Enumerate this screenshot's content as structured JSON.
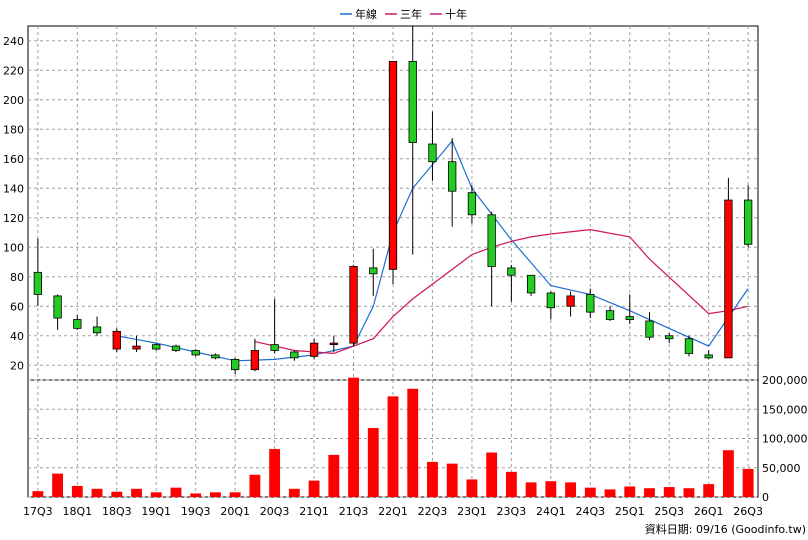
{
  "chart_data": {
    "type": "candlestick",
    "legend": {
      "placement": "top-center",
      "entries": [
        {
          "label": "年線",
          "color": "#1f6fd1"
        },
        {
          "label": "三年",
          "color": "#d1145a"
        },
        {
          "label": "十年",
          "color": "#c21f8a"
        }
      ]
    },
    "price_axis": {
      "ylim": [
        10,
        250
      ],
      "ticks": [
        20,
        40,
        60,
        80,
        100,
        120,
        140,
        160,
        180,
        200,
        220,
        240
      ]
    },
    "volume_axis": {
      "ylim": [
        0,
        200000
      ],
      "ticks": [
        0,
        50000,
        100000,
        150000,
        200000
      ],
      "tick_labels": [
        "0",
        "50,000",
        "100,000",
        "150,000",
        "200,000"
      ]
    },
    "x_labels": [
      "17Q3",
      "18Q1",
      "18Q3",
      "19Q1",
      "19Q3",
      "20Q1",
      "20Q3",
      "21Q1",
      "21Q3",
      "22Q1",
      "22Q3",
      "23Q1",
      "23Q3",
      "24Q1",
      "24Q3",
      "25Q1",
      "25Q3",
      "26Q1",
      "26Q3"
    ],
    "candles": [
      {
        "o": 68,
        "h": 106,
        "l": 60,
        "c": 83
      },
      {
        "o": 52,
        "h": 68,
        "l": 44,
        "c": 67
      },
      {
        "o": 45,
        "h": 54,
        "l": 44,
        "c": 51
      },
      {
        "o": 42,
        "h": 53,
        "l": 40,
        "c": 46
      },
      {
        "o": 43,
        "h": 45,
        "l": 29,
        "c": 31
      },
      {
        "o": 33,
        "h": 40,
        "l": 29,
        "c": 31
      },
      {
        "o": 31,
        "h": 35,
        "l": 30,
        "c": 34
      },
      {
        "o": 30,
        "h": 34,
        "l": 29,
        "c": 33
      },
      {
        "o": 27,
        "h": 31,
        "l": 26,
        "c": 30
      },
      {
        "o": 25,
        "h": 28,
        "l": 24,
        "c": 27
      },
      {
        "o": 17,
        "h": 25,
        "l": 14,
        "c": 24
      },
      {
        "o": 30,
        "h": 38,
        "l": 16,
        "c": 17
      },
      {
        "o": 30,
        "h": 65,
        "l": 28,
        "c": 34
      },
      {
        "o": 25,
        "h": 30,
        "l": 23,
        "c": 29
      },
      {
        "o": 35,
        "h": 38,
        "l": 24,
        "c": 26
      },
      {
        "o": 35,
        "h": 40,
        "l": 29,
        "c": 34
      },
      {
        "o": 87,
        "h": 88,
        "l": 33,
        "c": 35
      },
      {
        "o": 82,
        "h": 99,
        "l": 67,
        "c": 86
      },
      {
        "o": 226,
        "h": 226,
        "l": 75,
        "c": 85
      },
      {
        "o": 171,
        "h": 250,
        "l": 95,
        "c": 226
      },
      {
        "o": 158,
        "h": 192,
        "l": 145,
        "c": 170
      },
      {
        "o": 138,
        "h": 174,
        "l": 114,
        "c": 158
      },
      {
        "o": 122,
        "h": 142,
        "l": 116,
        "c": 137
      },
      {
        "o": 87,
        "h": 124,
        "l": 60,
        "c": 122
      },
      {
        "o": 81,
        "h": 88,
        "l": 63,
        "c": 86
      },
      {
        "o": 69,
        "h": 80,
        "l": 67,
        "c": 81
      },
      {
        "o": 59,
        "h": 70,
        "l": 51,
        "c": 69
      },
      {
        "o": 67,
        "h": 70,
        "l": 53,
        "c": 60
      },
      {
        "o": 56,
        "h": 72,
        "l": 52,
        "c": 68
      },
      {
        "o": 51,
        "h": 60,
        "l": 50,
        "c": 57
      },
      {
        "o": 51,
        "h": 68,
        "l": 48,
        "c": 53
      },
      {
        "o": 39,
        "h": 56,
        "l": 37,
        "c": 50
      },
      {
        "o": 38,
        "h": 42,
        "l": 35,
        "c": 40
      },
      {
        "o": 28,
        "h": 40,
        "l": 26,
        "c": 38
      },
      {
        "o": 25,
        "h": 30,
        "l": 24,
        "c": 27
      },
      {
        "o": 132,
        "h": 147,
        "l": 25,
        "c": 25
      },
      {
        "o": 102,
        "h": 142,
        "l": 100,
        "c": 132
      }
    ],
    "volume": [
      10000,
      40000,
      19000,
      14000,
      9000,
      14000,
      8000,
      16000,
      6000,
      8000,
      8000,
      38000,
      82000,
      14000,
      28000,
      72000,
      205000,
      118000,
      172000,
      185000,
      60000,
      57000,
      30000,
      76000,
      43000,
      25000,
      27000,
      25000,
      16000,
      13000,
      18000,
      15000,
      17000,
      15000,
      22000,
      80000,
      48000
    ],
    "series": [
      {
        "name": "年線",
        "x": [
          0,
          2,
          4,
          6,
          8,
          10,
          12,
          14,
          16,
          17,
          18,
          19,
          21,
          22,
          24,
          26,
          28,
          30,
          32,
          34,
          36
        ],
        "values": [
          null,
          null,
          40,
          35,
          29,
          23,
          24,
          27,
          33,
          60,
          110,
          140,
          172,
          140,
          105,
          74,
          68,
          57,
          45,
          33,
          72
        ]
      },
      {
        "name": "三年",
        "x": [
          11,
          13,
          15,
          17,
          18,
          19,
          20,
          21,
          22,
          23,
          24,
          25,
          26,
          28,
          30,
          31,
          34,
          35,
          36
        ],
        "values": [
          36,
          30,
          28,
          38,
          53,
          65,
          75,
          85,
          95,
          100,
          104,
          107,
          109,
          112,
          107,
          92,
          55,
          57,
          60
        ]
      },
      {
        "name": "十年",
        "x": [],
        "values": []
      }
    ],
    "footer": "資料日期: 09/16  (Goodinfo.tw)"
  }
}
